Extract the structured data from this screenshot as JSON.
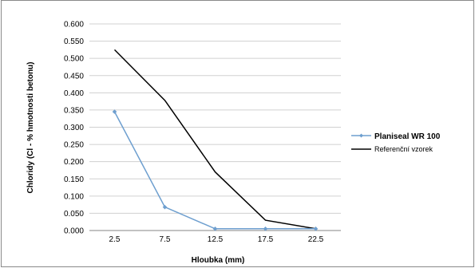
{
  "chart_data": {
    "type": "line",
    "x": [
      "2.5",
      "7.5",
      "12.5",
      "17.5",
      "22.5"
    ],
    "ylim": [
      0,
      0.6
    ],
    "yticks": [
      "0.000",
      "0.050",
      "0.100",
      "0.150",
      "0.200",
      "0.250",
      "0.300",
      "0.350",
      "0.400",
      "0.450",
      "0.500",
      "0.550",
      "0.600"
    ],
    "xlabel": "Hloubka (mm)",
    "ylabel": "Chloridy (Cl - % hmotnosti betonu)",
    "grid": true,
    "legend_position": "right",
    "series": [
      {
        "name": "Planiseal WR 100",
        "values": [
          0.345,
          0.068,
          0.005,
          0.005,
          0.005
        ],
        "color": "#6e9fcf",
        "marker": "diamond"
      },
      {
        "name": "Referenční vzorek",
        "values": [
          0.525,
          0.378,
          0.17,
          0.03,
          0.005
        ],
        "color": "#000000",
        "marker": "none"
      }
    ]
  }
}
